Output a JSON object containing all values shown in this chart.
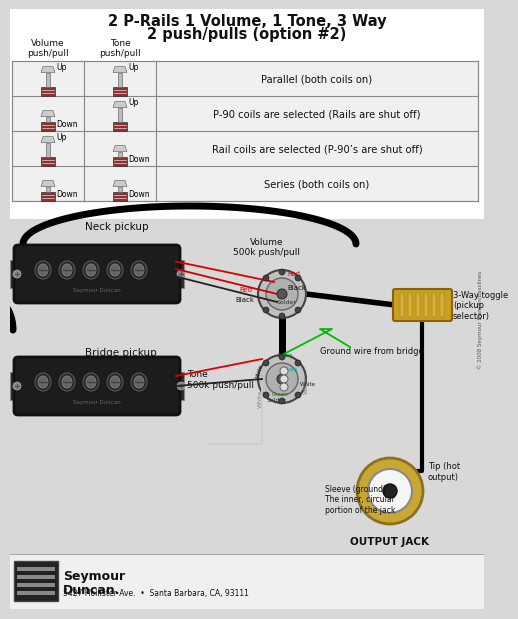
{
  "title_line1": "2 P-Rails 1 Volume, 1 Tone, 3 Way",
  "title_line2": "2 push/pulls (option #2)",
  "bg_color": "#d8d8d8",
  "table_bg": "#e8e8e8",
  "table_rows": [
    "Parallel (both coils on)",
    "P-90 coils are selected (Rails are shut off)",
    "Rail coils are selected (P-90’s are shut off)",
    "Series (both coils on)"
  ],
  "vol_labels": [
    "Up",
    "Down",
    "Up",
    "Down"
  ],
  "tone_labels": [
    "Up",
    "Up",
    "Down",
    "Down"
  ],
  "col_header_vol": "Volume\npush/pull",
  "col_header_tone": "Tone\npush/pull",
  "neck_label": "Neck pickup",
  "bridge_label": "Bridge pickup",
  "vol_pot_label": "Volume\n500k push/pull",
  "tone_pot_label": "Tone\n500k push/pull",
  "toggle_label": "3-Way toggle\n(pickup\nselector)",
  "ground_label": "Ground wire from bridge",
  "sleeve_label": "Sleeve (ground).\nThe inner, circular\nportion of the jack",
  "tip_label": "Tip (hot\noutput)",
  "output_label": "OUTPUT JACK",
  "footer": "5427 Hollister Ave.  •  Santa Barbara, CA, 93111",
  "copyright": "© 2008 Seymour Duncan/Basslines",
  "wire_red": "#dd0000",
  "wire_black": "#111111",
  "wire_green": "#00bb00",
  "wire_white": "#eeeeee",
  "wire_thick_black": "#000000"
}
